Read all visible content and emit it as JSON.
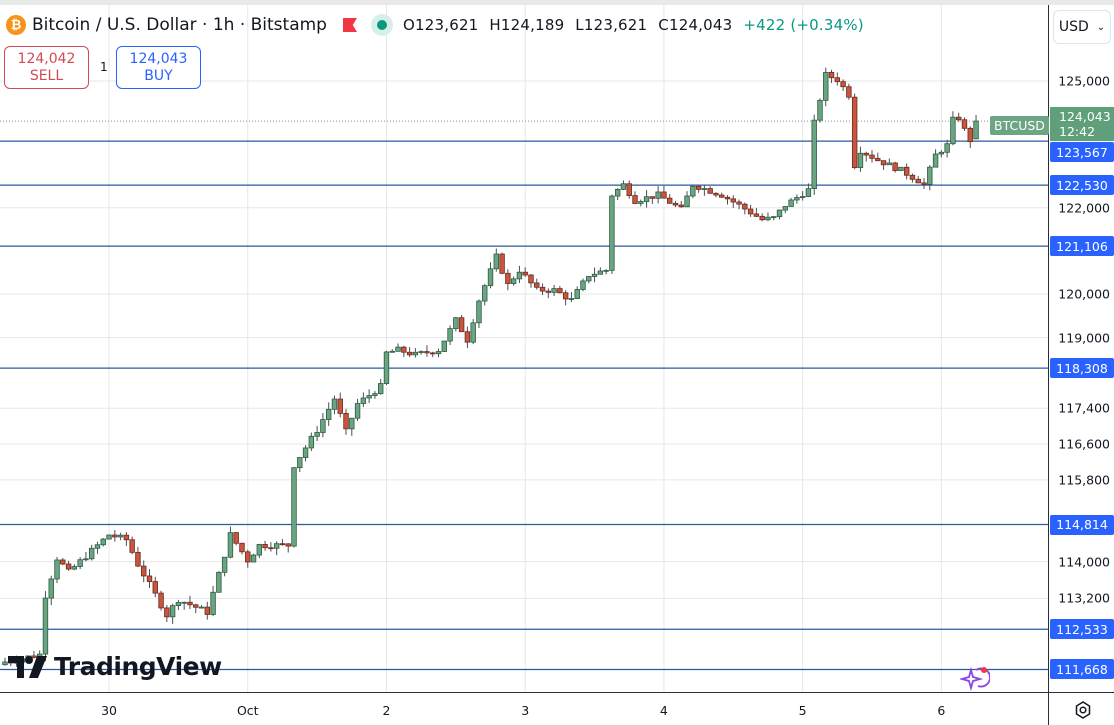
{
  "header": {
    "symbol_title": "Bitcoin / U.S. Dollar · 1h · Bitstamp",
    "icon": "bitcoin-icon",
    "ohlc": {
      "o_label": "O",
      "o": "123,621",
      "h_label": "H",
      "h": "124,189",
      "l_label": "L",
      "l": "123,621",
      "c_label": "C",
      "c": "124,043",
      "change": "+422 (+0.34%)"
    }
  },
  "trade": {
    "sell_price": "124,042",
    "sell_label": "SELL",
    "quantity": "1",
    "buy_price": "124,043",
    "buy_label": "BUY"
  },
  "currency": "USD",
  "branding": "TradingView",
  "colors": {
    "up": "#6aa583",
    "down": "#c8553d",
    "level_line": "#2a5a9c",
    "level_label": "#2962ff",
    "last_price": "#5f9f7a"
  },
  "chart_data": {
    "type": "candlestick",
    "title": "Bitcoin / U.S. Dollar · 1h · Bitstamp",
    "scale": "log",
    "ylim": [
      111350,
      125700
    ],
    "y_ticks": [
      "125,000",
      "122,000",
      "120,000",
      "119,000",
      "117,400",
      "116,600",
      "115,800",
      "114,000",
      "113,200"
    ],
    "y_tick_values": [
      125000,
      122000,
      120000,
      119000,
      117400,
      116600,
      115800,
      114000,
      113200
    ],
    "x_ticks": [
      {
        "label": "30",
        "hour": 18
      },
      {
        "label": "Oct",
        "hour": 42
      },
      {
        "label": "2",
        "hour": 66
      },
      {
        "label": "3",
        "hour": 90
      },
      {
        "label": "4",
        "hour": 114
      },
      {
        "label": "5",
        "hour": 138
      },
      {
        "label": "6",
        "hour": 162
      }
    ],
    "close_path_anchors": [
      [
        0,
        111830
      ],
      [
        6,
        111990
      ],
      [
        7,
        113270
      ],
      [
        9,
        114080
      ],
      [
        11,
        113770
      ],
      [
        18,
        114590
      ],
      [
        21,
        114480
      ],
      [
        23,
        113940
      ],
      [
        28,
        112840
      ],
      [
        30,
        113180
      ],
      [
        35,
        112900
      ],
      [
        37,
        113720
      ],
      [
        39,
        114590
      ],
      [
        42,
        114030
      ],
      [
        44,
        114360
      ],
      [
        49,
        114360
      ],
      [
        50,
        116130
      ],
      [
        54,
        116910
      ],
      [
        57,
        117620
      ],
      [
        59,
        116870
      ],
      [
        61,
        117500
      ],
      [
        65,
        117890
      ],
      [
        66,
        118650
      ],
      [
        68,
        118720
      ],
      [
        71,
        118610
      ],
      [
        75,
        118720
      ],
      [
        78,
        119400
      ],
      [
        80,
        118950
      ],
      [
        82,
        119860
      ],
      [
        85,
        120860
      ],
      [
        87,
        120210
      ],
      [
        89,
        120550
      ],
      [
        92,
        120090
      ],
      [
        95,
        120090
      ],
      [
        98,
        119860
      ],
      [
        101,
        120440
      ],
      [
        104,
        120550
      ],
      [
        105,
        122300
      ],
      [
        107,
        122540
      ],
      [
        109,
        122170
      ],
      [
        113,
        122300
      ],
      [
        117,
        121960
      ],
      [
        119,
        122540
      ],
      [
        124,
        122300
      ],
      [
        127,
        122060
      ],
      [
        131,
        121720
      ],
      [
        133,
        121760
      ],
      [
        135,
        122060
      ],
      [
        139,
        122420
      ],
      [
        140,
        124000
      ],
      [
        142,
        125150
      ],
      [
        144,
        125030
      ],
      [
        146,
        124670
      ],
      [
        147,
        123000
      ],
      [
        148,
        123350
      ],
      [
        151,
        123120
      ],
      [
        155,
        122880
      ],
      [
        158,
        122640
      ],
      [
        159,
        122540
      ],
      [
        161,
        123240
      ],
      [
        163,
        123470
      ],
      [
        164,
        124070
      ],
      [
        165,
        124120
      ],
      [
        166,
        123830
      ],
      [
        167,
        123590
      ],
      [
        168,
        124043
      ]
    ],
    "last_candle": {
      "o": 123621,
      "h": 124189,
      "l": 123621,
      "c": 124043
    },
    "levels": [
      "123,567",
      "122,530",
      "121,106",
      "118,308",
      "114,814",
      "112,533",
      "111,668"
    ],
    "level_values": [
      123567,
      122530,
      121106,
      118308,
      114814,
      112533,
      111668
    ],
    "last_price": "124,043",
    "last_price_value": 124043,
    "countdown": "12:42",
    "symbol_tag": "BTCUSD"
  }
}
